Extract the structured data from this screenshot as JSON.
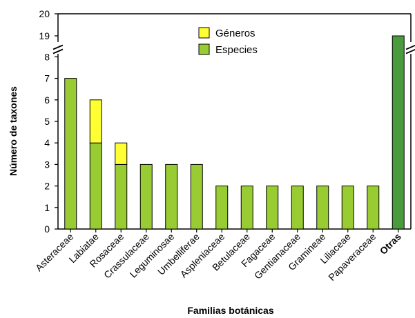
{
  "chart_data": {
    "type": "bar",
    "stacked": true,
    "broken_y_axis": true,
    "xlabel": "Familias botánicas",
    "ylabel": "Número de taxones",
    "y_ticks_lower": [
      0,
      1,
      2,
      3,
      4,
      5,
      6,
      7,
      8
    ],
    "y_ticks_upper": [
      19,
      20
    ],
    "categories": [
      "Asteraceae",
      "Labiatae",
      "Rosaceae",
      "Crassulaceae",
      "Leguminosae",
      "Umbelliferae",
      "Aspleniaceae",
      "Betulaceae",
      "Fagaceae",
      "Gentianaceae",
      "Gramineae",
      "Liliaceae",
      "Papaveraceae",
      "Otras"
    ],
    "bold_categories": [
      "Otras"
    ],
    "series": [
      {
        "name": "Especies",
        "color": "#99cc33",
        "values": [
          7,
          4,
          3,
          3,
          3,
          3,
          2,
          2,
          2,
          2,
          2,
          2,
          2,
          19
        ]
      },
      {
        "name": "Géneros",
        "color": "#ffff33",
        "values": [
          0,
          2,
          1,
          0,
          0,
          0,
          0,
          0,
          0,
          0,
          0,
          0,
          0,
          0
        ]
      }
    ],
    "highlight": {
      "category": "Otras",
      "color": "#4a9a3e"
    },
    "legend": {
      "position": "top-center",
      "order": [
        "Géneros",
        "Especies"
      ]
    }
  }
}
